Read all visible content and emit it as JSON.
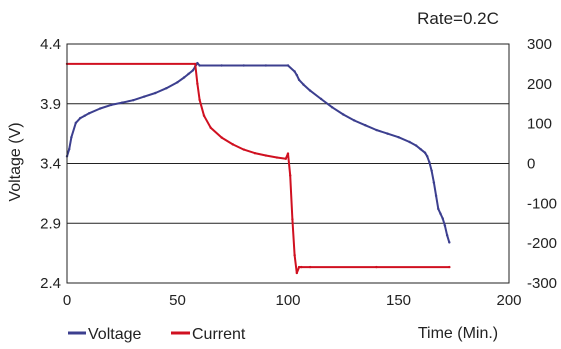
{
  "chart_data": {
    "type": "line",
    "annotation": "Rate=0.2C",
    "xlabel": "Time (Min.)",
    "ylabel": "Voltage (V)",
    "y2label": "",
    "x_ticks": [
      "0",
      "50",
      "100",
      "150",
      "200"
    ],
    "y_ticks": [
      "2.4",
      "2.9",
      "3.4",
      "3.9",
      "4.4"
    ],
    "y2_ticks": [
      "-300",
      "-200",
      "-100",
      "0",
      "100",
      "200",
      "300"
    ],
    "xlim": [
      0,
      200
    ],
    "ylim": [
      2.4,
      4.4
    ],
    "y2lim": [
      -300,
      300
    ],
    "gridlines_y": [
      2.9,
      3.4,
      3.9
    ],
    "legend_placement": "bottom-left",
    "series": [
      {
        "name": "Voltage",
        "axis": "left",
        "color": "#3c3f8f",
        "x": [
          0,
          1,
          2,
          4,
          6,
          8,
          10,
          15,
          20,
          25,
          30,
          35,
          40,
          45,
          50,
          53,
          55,
          57,
          58,
          59,
          60,
          70,
          80,
          90,
          100,
          103,
          104,
          105,
          107,
          110,
          115,
          120,
          125,
          130,
          135,
          140,
          145,
          150,
          155,
          158,
          160,
          162,
          163,
          164,
          165,
          166,
          167,
          168,
          169,
          170,
          171,
          172,
          173
        ],
        "y": [
          3.46,
          3.52,
          3.62,
          3.74,
          3.78,
          3.8,
          3.82,
          3.86,
          3.89,
          3.91,
          3.93,
          3.96,
          3.99,
          4.03,
          4.08,
          4.12,
          4.15,
          4.18,
          4.21,
          4.24,
          4.22,
          4.22,
          4.22,
          4.22,
          4.22,
          4.17,
          4.14,
          4.1,
          4.06,
          4.01,
          3.94,
          3.87,
          3.81,
          3.76,
          3.72,
          3.68,
          3.65,
          3.62,
          3.58,
          3.55,
          3.52,
          3.49,
          3.46,
          3.41,
          3.34,
          3.24,
          3.13,
          3.02,
          2.98,
          2.94,
          2.88,
          2.8,
          2.74
        ]
      },
      {
        "name": "Current",
        "axis": "right",
        "color": "#d01020",
        "x": [
          0,
          58,
          59,
          60,
          62,
          65,
          70,
          75,
          80,
          85,
          90,
          95,
          99,
          100,
          101,
          102,
          103,
          104,
          105,
          106,
          110,
          140,
          173
        ],
        "y": [
          250,
          250,
          200,
          160,
          120,
          90,
          65,
          48,
          35,
          26,
          20,
          15,
          12,
          25,
          -30,
          -140,
          -230,
          -275,
          -260,
          -260,
          -260,
          -260,
          -260
        ]
      }
    ]
  }
}
